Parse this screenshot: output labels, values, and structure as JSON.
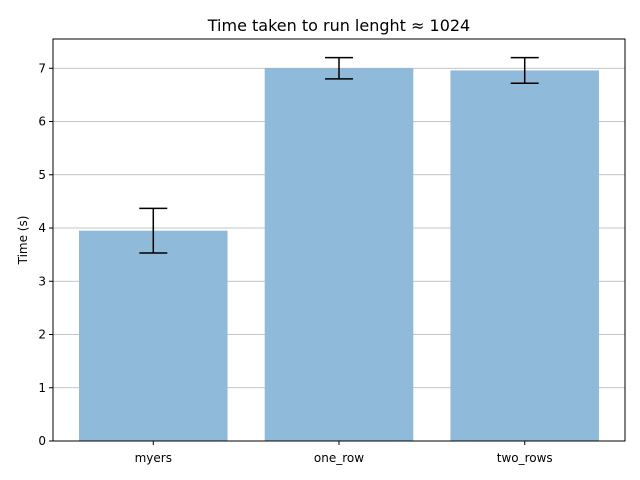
{
  "chart_data": {
    "type": "bar",
    "title": "Time taken to run lenght ≈ 1024",
    "xlabel": "",
    "ylabel": "Time (s)",
    "categories": [
      "myers",
      "one_row",
      "two_rows"
    ],
    "values": [
      3.95,
      7.0,
      6.96
    ],
    "errors": [
      0.42,
      0.2,
      0.24
    ],
    "ylim": [
      0,
      7.55
    ],
    "yticks": [
      0,
      1,
      2,
      3,
      4,
      5,
      6,
      7
    ],
    "grid": "y-axis",
    "bar_color": "#8FBAD9"
  }
}
